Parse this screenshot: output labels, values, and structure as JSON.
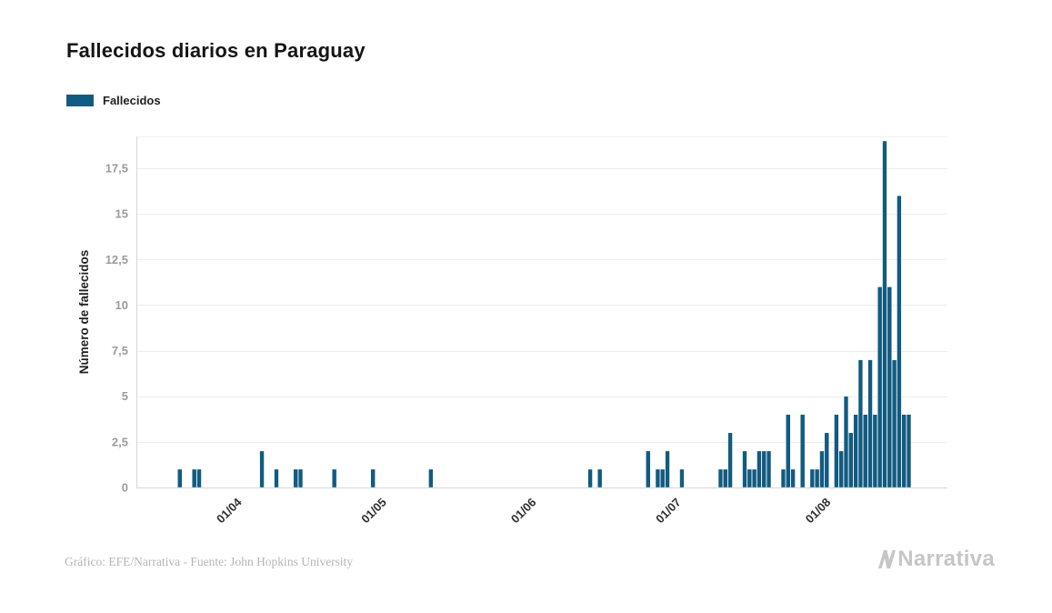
{
  "title": "Fallecidos diarios en Paraguay",
  "legend": {
    "label": "Fallecidos",
    "color": "#125b80"
  },
  "footer": {
    "credit": "Gráfico: EFE/Narrativa - Fuente: John Hopkins University",
    "brand": "Narrativa"
  },
  "colors": {
    "bar": "#125b80",
    "grid": "#ececec",
    "axis_line": "#d6d6d6",
    "y_tick_text": "#9b9b9b",
    "x_tick_text": "#2f2f2f",
    "axis_title_text": "#222222"
  },
  "chart_data": {
    "type": "bar",
    "title": "Fallecidos diarios en Paraguay",
    "xlabel": "",
    "ylabel": "Número de fallecidos",
    "series_name": "Fallecidos",
    "grid": true,
    "legend_position": "top-left",
    "ylim": [
      0,
      19.25
    ],
    "y_ticks": [
      {
        "value": 0,
        "label": "0"
      },
      {
        "value": 2.5,
        "label": "2,5"
      },
      {
        "value": 5,
        "label": "5"
      },
      {
        "value": 7.5,
        "label": "7,5"
      },
      {
        "value": 10,
        "label": "10"
      },
      {
        "value": 12.5,
        "label": "12,5"
      },
      {
        "value": 15,
        "label": "15"
      },
      {
        "value": 17.5,
        "label": "17,5"
      }
    ],
    "x_range": [
      "2020-03-11",
      "2020-08-26"
    ],
    "x_ticks": [
      {
        "date": "2020-04-01",
        "label": "01/04"
      },
      {
        "date": "2020-05-01",
        "label": "01/05"
      },
      {
        "date": "2020-06-01",
        "label": "01/06"
      },
      {
        "date": "2020-07-01",
        "label": "01/07"
      },
      {
        "date": "2020-08-01",
        "label": "01/08"
      }
    ],
    "points": [
      {
        "date": "2020-03-20",
        "value": 1
      },
      {
        "date": "2020-03-23",
        "value": 1
      },
      {
        "date": "2020-03-24",
        "value": 1
      },
      {
        "date": "2020-04-06",
        "value": 2
      },
      {
        "date": "2020-04-09",
        "value": 1
      },
      {
        "date": "2020-04-13",
        "value": 1
      },
      {
        "date": "2020-04-14",
        "value": 1
      },
      {
        "date": "2020-04-21",
        "value": 1
      },
      {
        "date": "2020-04-29",
        "value": 1
      },
      {
        "date": "2020-05-11",
        "value": 1
      },
      {
        "date": "2020-06-13",
        "value": 1
      },
      {
        "date": "2020-06-15",
        "value": 1
      },
      {
        "date": "2020-06-25",
        "value": 2
      },
      {
        "date": "2020-06-27",
        "value": 1
      },
      {
        "date": "2020-06-28",
        "value": 1
      },
      {
        "date": "2020-06-29",
        "value": 2
      },
      {
        "date": "2020-07-02",
        "value": 1
      },
      {
        "date": "2020-07-10",
        "value": 1
      },
      {
        "date": "2020-07-11",
        "value": 1
      },
      {
        "date": "2020-07-12",
        "value": 3
      },
      {
        "date": "2020-07-15",
        "value": 2
      },
      {
        "date": "2020-07-16",
        "value": 1
      },
      {
        "date": "2020-07-17",
        "value": 1
      },
      {
        "date": "2020-07-18",
        "value": 2
      },
      {
        "date": "2020-07-19",
        "value": 2
      },
      {
        "date": "2020-07-20",
        "value": 2
      },
      {
        "date": "2020-07-23",
        "value": 1
      },
      {
        "date": "2020-07-24",
        "value": 4
      },
      {
        "date": "2020-07-25",
        "value": 1
      },
      {
        "date": "2020-07-27",
        "value": 4
      },
      {
        "date": "2020-07-29",
        "value": 1
      },
      {
        "date": "2020-07-30",
        "value": 1
      },
      {
        "date": "2020-07-31",
        "value": 2
      },
      {
        "date": "2020-08-01",
        "value": 3
      },
      {
        "date": "2020-08-03",
        "value": 4
      },
      {
        "date": "2020-08-04",
        "value": 2
      },
      {
        "date": "2020-08-05",
        "value": 5
      },
      {
        "date": "2020-08-06",
        "value": 3
      },
      {
        "date": "2020-08-07",
        "value": 4
      },
      {
        "date": "2020-08-08",
        "value": 7
      },
      {
        "date": "2020-08-09",
        "value": 4
      },
      {
        "date": "2020-08-10",
        "value": 7
      },
      {
        "date": "2020-08-11",
        "value": 4
      },
      {
        "date": "2020-08-12",
        "value": 11
      },
      {
        "date": "2020-08-13",
        "value": 19
      },
      {
        "date": "2020-08-14",
        "value": 11
      },
      {
        "date": "2020-08-15",
        "value": 7
      },
      {
        "date": "2020-08-16",
        "value": 16
      },
      {
        "date": "2020-08-17",
        "value": 4
      },
      {
        "date": "2020-08-18",
        "value": 4
      }
    ]
  }
}
